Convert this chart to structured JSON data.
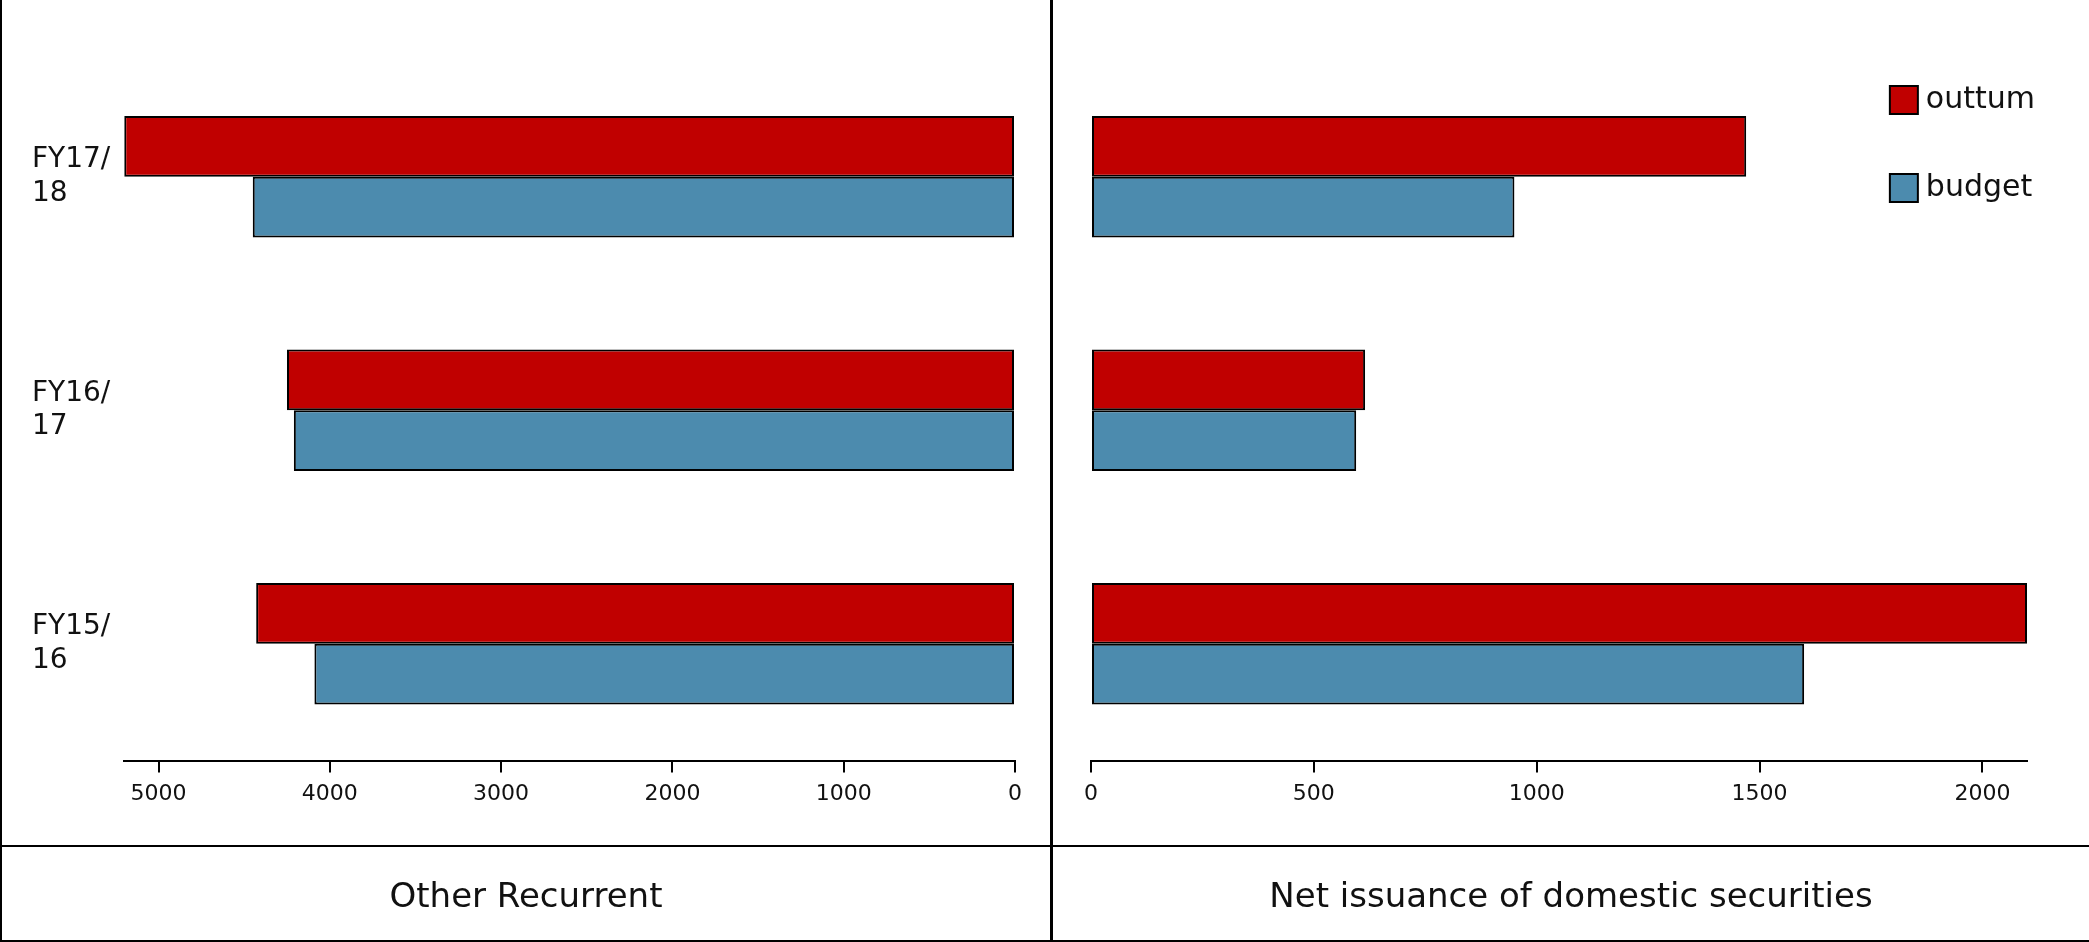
{
  "chart_data": [
    {
      "type": "bar",
      "orientation": "horizontal",
      "xlabel": "Other Recurrent",
      "categories": [
        "FY17/18",
        "FY16/17",
        "FY15/16"
      ],
      "series": [
        {
          "color": "#c00000",
          "values": [
            5200,
            4250,
            4430
          ]
        },
        {
          "color": "#4c8bae",
          "values": [
            4450,
            4210,
            4090
          ]
        }
      ],
      "xlim": [
        5200,
        0
      ],
      "xticks": [
        5000,
        4000,
        3000,
        2000,
        1000,
        0
      ],
      "grid": false,
      "legend": false
    },
    {
      "type": "bar",
      "orientation": "horizontal",
      "xlabel": "Net issuance of domestic securities",
      "categories": [
        null,
        null,
        null
      ],
      "series": [
        {
          "name": "outtum",
          "color": "#c00000",
          "values": [
            1470,
            615,
            2100
          ]
        },
        {
          "name": "budget",
          "color": "#4c8bae",
          "values": [
            950,
            595,
            1600
          ]
        }
      ],
      "xlim": [
        0,
        2100
      ],
      "xticks": [
        0,
        500,
        1000,
        1500,
        2000
      ],
      "grid": false,
      "legend": "top right",
      "tick_labels": "x"
    }
  ]
}
